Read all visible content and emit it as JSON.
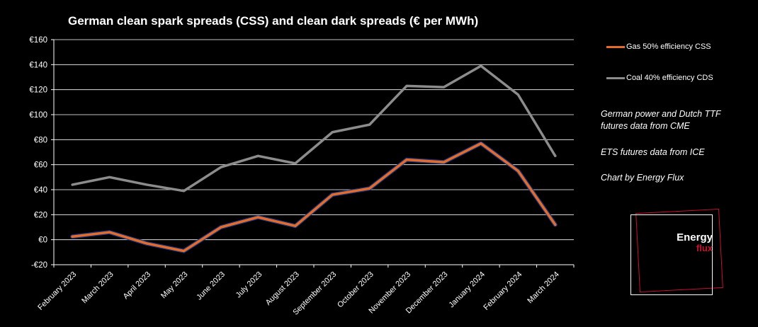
{
  "chart_data": {
    "type": "line",
    "title": "German clean spark spreads (CSS) and clean dark spreads (€ per MWh)",
    "xlabel": "",
    "ylabel": "",
    "ylim": [
      -20,
      160
    ],
    "y_ticks": [
      -20,
      0,
      20,
      40,
      60,
      80,
      100,
      120,
      140,
      160
    ],
    "y_tick_labels": [
      "-€20",
      "€0",
      "€20",
      "€40",
      "€60",
      "€80",
      "€100",
      "€120",
      "€140",
      "€160"
    ],
    "categories": [
      "February 2023",
      "March 2023",
      "April 2023",
      "May 2023",
      "June 2023",
      "July 2023",
      "August 2023",
      "September 2023",
      "October 2023",
      "November 2023",
      "December 2023",
      "January 2024",
      "February 2024",
      "March 2024"
    ],
    "grid": true,
    "legend_position": "right",
    "series": [
      {
        "name": "Gas 50% efficiency CSS",
        "color": "#e46c2a",
        "values": [
          2.5,
          6,
          -3,
          -9,
          10,
          18,
          11,
          36,
          41,
          64,
          62,
          77,
          55,
          12
        ]
      },
      {
        "name": "Coal 40% efficiency CDS",
        "color": "#8c8c8c",
        "values": [
          44,
          50,
          44,
          39,
          58,
          67,
          61,
          86,
          92,
          123,
          122,
          139,
          116,
          67
        ]
      }
    ]
  },
  "notes": [
    "German power and Dutch TTF futures data from CME",
    "ETS futures data from ICE",
    "Chart by Energy Flux"
  ],
  "logo": {
    "line1": "Energy",
    "line2": "flux",
    "colors": {
      "frame": "#ffffff",
      "accent": "#c8102e"
    }
  }
}
